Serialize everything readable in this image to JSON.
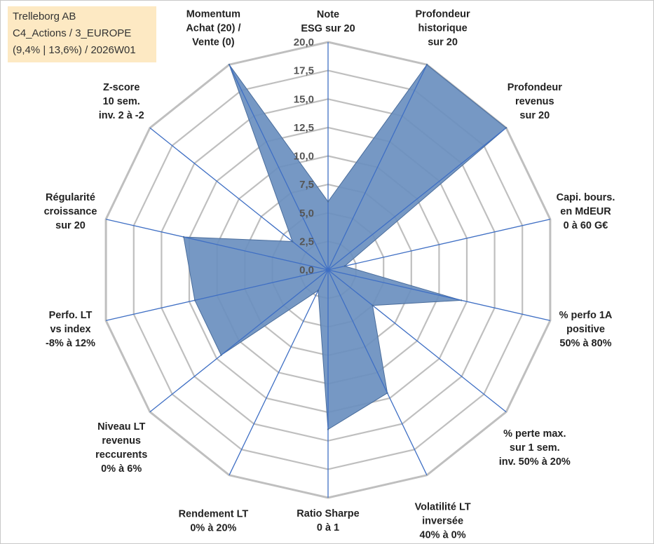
{
  "info": {
    "company": "Trelleborg AB",
    "category": "C4_Actions / 3_EUROPE",
    "detail": "(9,4% | 13,6%) / 2026W01",
    "background_color": "#fde9c3"
  },
  "chart_data": {
    "type": "radar",
    "title": "",
    "rlim": [
      0,
      20
    ],
    "ticks": [
      "0,0",
      "2,5",
      "5,0",
      "7,5",
      "10,0",
      "12,5",
      "15,0",
      "17,5",
      "20,0"
    ],
    "axes": [
      {
        "label": [
          "Note",
          "ESG sur 20"
        ],
        "value": 6
      },
      {
        "label": [
          "Profondeur",
          "historique",
          "sur 20"
        ],
        "value": 20
      },
      {
        "label": [
          "Profondeur",
          "revenus",
          "sur 20"
        ],
        "value": 20
      },
      {
        "label": [
          "Capi. bours.",
          "en MdEUR",
          "0 à 60 G€"
        ],
        "value": 1.5
      },
      {
        "label": [
          "% perfo 1A",
          "positive",
          "50% à 80%"
        ],
        "value": 12
      },
      {
        "label": [
          "% perte max.",
          "sur 1 sem.",
          "inv. 50% à 20%"
        ],
        "value": 5
      },
      {
        "label": [
          "Volatilité LT",
          "inversée",
          "40% à 0%"
        ],
        "value": 12
      },
      {
        "label": [
          "Ratio Sharpe",
          "0 à 1"
        ],
        "value": 14
      },
      {
        "label": [
          "Rendement LT",
          "0% à 20%"
        ],
        "value": 2
      },
      {
        "label": [
          "Niveau LT",
          "revenus",
          "reccurents",
          "0% à 6%"
        ],
        "value": 12
      },
      {
        "label": [
          "Perfo. LT",
          "vs index",
          "-8% à 12%"
        ],
        "value": 12
      },
      {
        "label": [
          "Régularité",
          "croissance",
          "sur 20"
        ],
        "value": 13
      },
      {
        "label": [
          "Z-score",
          "10 sem.",
          "inv. 2 à -2"
        ],
        "value": 4
      },
      {
        "label": [
          "Momentum",
          "Achat (20) /",
          "Vente (0)"
        ],
        "value": 20
      }
    ],
    "series": [
      {
        "name": "Trelleborg AB"
      }
    ],
    "fill_color": "#6a8fbf",
    "edge_color": "#4a6d9c",
    "spoke_color": "#3f6fc4",
    "grid_color": "#bfbfbf"
  }
}
